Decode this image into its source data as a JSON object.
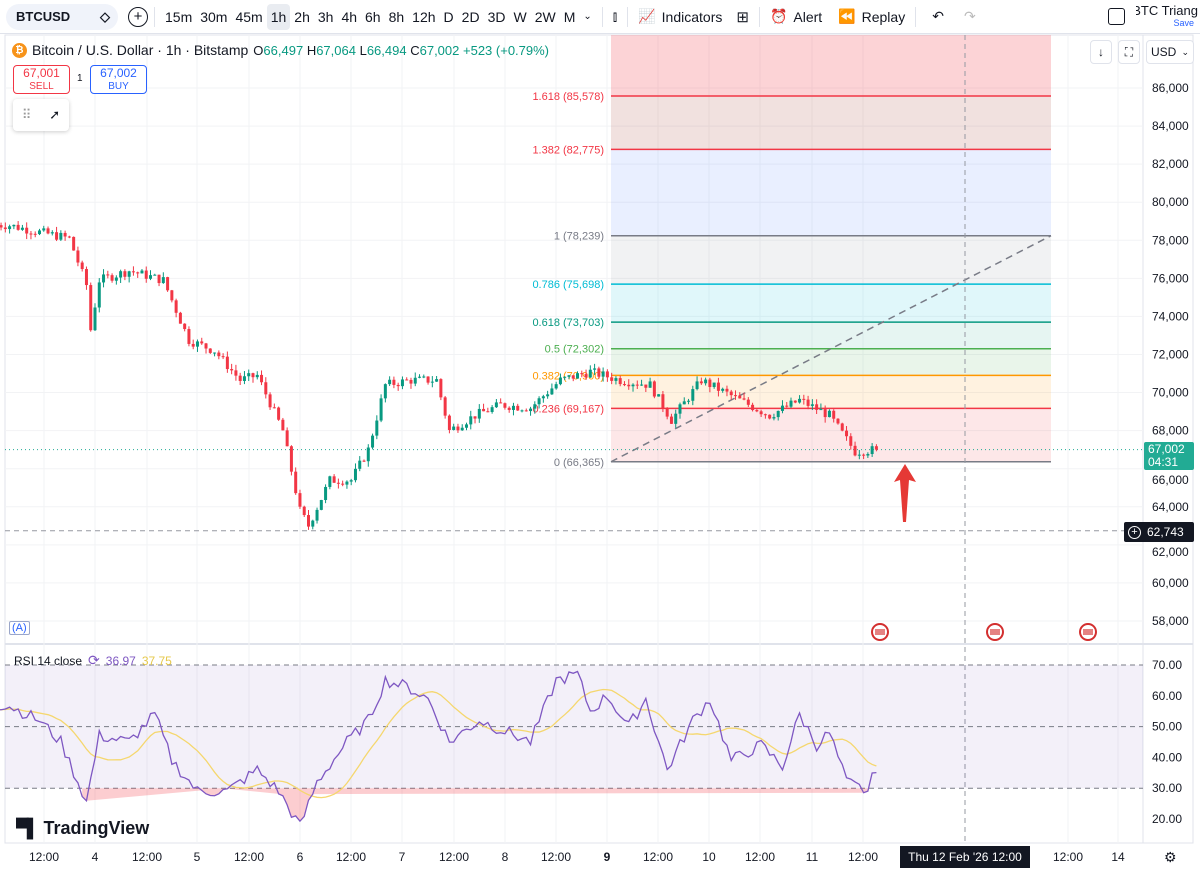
{
  "toolbar": {
    "symbol": "BTCUSD",
    "intervals": [
      "15m",
      "30m",
      "45m",
      "1h",
      "2h",
      "3h",
      "4h",
      "6h",
      "8h",
      "12h",
      "D",
      "2D",
      "3D",
      "W",
      "2W",
      "M"
    ],
    "active_interval": "1h",
    "indicators_label": "Indicators",
    "alert_label": "Alert",
    "replay_label": "Replay",
    "layout_name": "BTC Triang",
    "save_label": "Save"
  },
  "legend": {
    "title": "Bitcoin / U.S. Dollar · 1h · Bitstamp",
    "o_label": "O",
    "o": "66,497",
    "h_label": "H",
    "h": "67,064",
    "l_label": "L",
    "l": "66,494",
    "c_label": "C",
    "c": "67,002",
    "change": "+523 (+0.79%)"
  },
  "trade": {
    "sell_price": "67,001",
    "sell_label": "SELL",
    "qty": "1",
    "buy_price": "67,002",
    "buy_label": "BUY"
  },
  "currency": "USD",
  "auto_label": "(A)",
  "rsi": {
    "label": "RSI 14 close",
    "value": "36.97",
    "ma_value": "37.75"
  },
  "price_badge": {
    "price": "67,002",
    "countdown": "04:31"
  },
  "crosshair_badge": "62,743",
  "time_badge": "Thu 12 Feb '26  12:00",
  "brand": "TradingView",
  "colors": {
    "up": "#089981",
    "down": "#f23645",
    "rsi": "#7e57c2",
    "rsi_ma": "#f5d76e"
  },
  "chart_data": {
    "type": "candlestick",
    "price_axis": {
      "min": 58000,
      "max": 86000,
      "step": 2000,
      "labels": [
        "86,000",
        "84,000",
        "82,000",
        "80,000",
        "78,000",
        "76,000",
        "74,000",
        "72,000",
        "70,000",
        "68,000",
        "66,000",
        "64,000",
        "62,000",
        "60,000",
        "58,000"
      ]
    },
    "time_axis": [
      "12:00",
      "4",
      "12:00",
      "5",
      "12:00",
      "6",
      "12:00",
      "7",
      "12:00",
      "8",
      "12:00",
      "9",
      "12:00",
      "10",
      "12:00",
      "11",
      "12:00",
      "12:00",
      "14"
    ],
    "close_keypoints_hours": [
      3.6,
      11,
      18,
      22,
      23,
      25,
      32,
      40,
      46,
      52,
      58,
      62,
      68,
      72,
      74,
      79,
      84,
      88,
      92,
      98,
      104,
      107,
      113,
      119,
      126,
      133,
      140,
      147,
      154,
      159,
      166,
      175,
      182,
      189,
      196,
      202,
      207
    ],
    "close_keypoints": [
      78800,
      78430,
      78100,
      75650,
      73300,
      75900,
      76400,
      75900,
      72750,
      72200,
      70650,
      70900,
      68000,
      63800,
      63000,
      65400,
      65400,
      67000,
      70400,
      70650,
      70650,
      68000,
      68800,
      69350,
      69200,
      70650,
      71100,
      70650,
      70400,
      68560,
      70650,
      69600,
      68800,
      69600,
      68800,
      66900,
      67002
    ],
    "fib_levels": [
      {
        "ratio": "0",
        "price": 66365,
        "label": "0 (66,365)",
        "color": "#787b86"
      },
      {
        "ratio": "0.236",
        "price": 69167,
        "label": "0.236 (69,167)",
        "color": "#f23645"
      },
      {
        "ratio": "0.382",
        "price": 70900,
        "label": "0.382 (70,900)",
        "color": "#ff9800"
      },
      {
        "ratio": "0.5",
        "price": 72302,
        "label": "0.5 (72,302)",
        "color": "#4caf50"
      },
      {
        "ratio": "0.618",
        "price": 73703,
        "label": "0.618 (73,703)",
        "color": "#089981"
      },
      {
        "ratio": "0.786",
        "price": 75698,
        "label": "0.786 (75,698)",
        "color": "#00bcd4"
      },
      {
        "ratio": "1",
        "price": 78239,
        "label": "1 (78,239)",
        "color": "#787b86"
      },
      {
        "ratio": "1.382",
        "price": 82775,
        "label": "1.382 (82,775)",
        "color": "#f23645"
      },
      {
        "ratio": "1.618",
        "price": 85578,
        "label": "1.618 (85,578)",
        "color": "#f23645"
      }
    ],
    "current_price": 67002,
    "crosshair_price": 62743,
    "rsi_axis": {
      "min": 15,
      "max": 72,
      "labels": [
        "70.00",
        "60.00",
        "50.00",
        "40.00",
        "30.00",
        "20.00"
      ]
    },
    "rsi_keypoints_hours": [
      3.6,
      11,
      16,
      22,
      25,
      32,
      38,
      42,
      48,
      55,
      62,
      67,
      72,
      76,
      83,
      88,
      92,
      97,
      102,
      107,
      114,
      121,
      126,
      132,
      137,
      140,
      144,
      149,
      153,
      158,
      164,
      168,
      173,
      180,
      185,
      189,
      193,
      196,
      200,
      205,
      207
    ],
    "rsi_keypoints": [
      57,
      52,
      45,
      25.6,
      47,
      45,
      54,
      39,
      29,
      29,
      36,
      29,
      17.6,
      32,
      45,
      52,
      65,
      63,
      59,
      45,
      52,
      48,
      45,
      65,
      67,
      55,
      60,
      50,
      59,
      36,
      52,
      59,
      39,
      44,
      37,
      54,
      44,
      48,
      32,
      29,
      37
    ]
  }
}
